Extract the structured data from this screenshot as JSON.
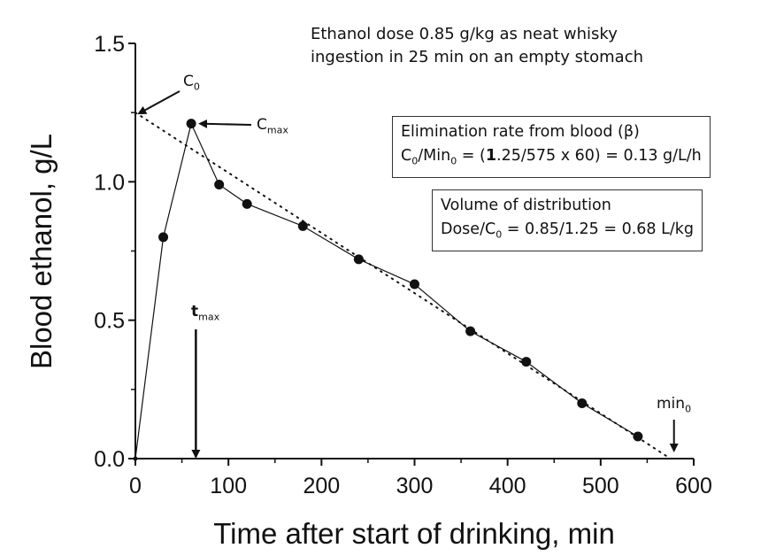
{
  "chart_data": {
    "type": "line",
    "ylabel": "Blood ethanol, g/L",
    "xlabel": "Time after start of drinking, min",
    "xlim": [
      0,
      600
    ],
    "ylim": [
      0.0,
      1.5
    ],
    "x_ticks": [
      "0",
      "100",
      "200",
      "300",
      "400",
      "500",
      "600"
    ],
    "y_ticks": [
      "0.0",
      "0.5",
      "1.0",
      "1.5"
    ],
    "series": [
      {
        "x": [
          0,
          30,
          60,
          90,
          120,
          180,
          240,
          300,
          360,
          420,
          480,
          540
        ],
        "y": [
          0.0,
          0.8,
          1.21,
          0.99,
          0.92,
          0.84,
          0.72,
          0.63,
          0.46,
          0.35,
          0.2,
          0.08
        ]
      }
    ],
    "elimination_line": {
      "x": [
        0,
        575
      ],
      "y": [
        1.25,
        0.0
      ]
    },
    "tmax": 65,
    "min0": 575
  },
  "annotations": {
    "title_line1": "Ethanol dose 0.85 g/kg as neat whisky",
    "title_line2": "ingestion in 25 min on an empty stomach",
    "c0_main": "C",
    "c0_sub": "0",
    "cmax_main": "C",
    "cmax_sub": "max",
    "tmax_main": "t",
    "tmax_sub": "max",
    "min0_main": "min",
    "min0_sub": "0"
  },
  "elimination_box": {
    "line1": "Elimination rate from blood (β)",
    "line2_a": "C",
    "line2_sub1": "0",
    "line2_b": "/Min",
    "line2_sub2": "0",
    "line2_c": " = (",
    "line2_bold1": "1",
    "line2_d": ".25/575 x 60) = 0.13 g/L/h"
  },
  "distribution_box": {
    "line1": "Volume of distribution",
    "line2_a": "Dose/C",
    "line2_sub": "0",
    "line2_b": " = 0.85/1.25 = 0.68 L/kg"
  }
}
